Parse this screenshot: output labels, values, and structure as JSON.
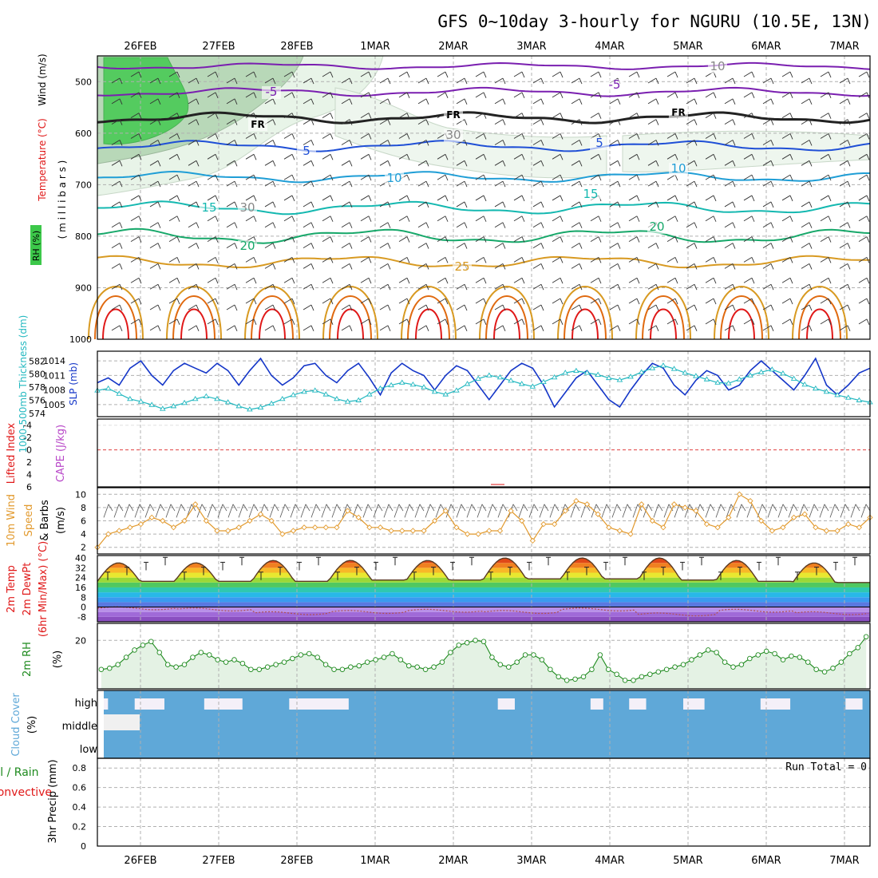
{
  "title": "GFS 0~10day 3-hourly for NGURU (10.5E, 13N)",
  "colors": {
    "frame": "#000000",
    "grid": "#b0b0b0",
    "purple": "#7a1fb0",
    "blue": "#1f4fd6",
    "lightblue": "#1f9ed6",
    "teal": "#14b8b0",
    "green": "#17a86a",
    "gold": "#d89a22",
    "orange": "#e06a10",
    "red": "#e01818",
    "slp": "#1436c8",
    "thickness": "#22b8c0",
    "windspeed": "#e29a2e",
    "rh2m": "#1e8a1e",
    "cloud": "#5fa8d8",
    "rhShade": "#3cc84a"
  },
  "chart_data": [
    {
      "id": "upper_air",
      "type": "contour",
      "x_ticks": [
        "26FEB",
        "27FEB",
        "28FEB",
        "1MAR",
        "2MAR",
        "3MAR",
        "4MAR",
        "5MAR",
        "6MAR",
        "7MAR"
      ],
      "ylabel_parts": [
        "Wind (m/s)",
        "Temperature (°C)",
        "RH (%)",
        "( m i l l i b a r s )"
      ],
      "y_ticks": [
        "500",
        "600",
        "700",
        "800",
        "900",
        "1000"
      ],
      "contour_labels": [
        "-5",
        "-5",
        "FR",
        "FR",
        "FR",
        "5",
        "5",
        "10",
        "10",
        "15",
        "15",
        "20",
        "20",
        "25",
        "30",
        "30",
        "10"
      ]
    },
    {
      "id": "slp_thickness",
      "type": "line",
      "ylabel_left": "1000-500mb Thickness (dm)",
      "ylabel_right": "SLP (mb)",
      "left_ticks": [
        "582",
        "580",
        "578",
        "576",
        "574"
      ],
      "right_ticks": [
        "1014",
        "1011",
        "1008",
        "1005"
      ],
      "series": [
        {
          "values": [
            1009.5,
            1010.5,
            1009,
            1012.5,
            1014,
            1011,
            1009,
            1012,
            1013.5,
            1012.5,
            1011.5,
            1013.5,
            1012,
            1009,
            1012,
            1014.5,
            1011,
            1009,
            1010.5,
            1013,
            1013.5,
            1011,
            1009.5,
            1012,
            1013.5,
            1010.5,
            1007,
            1011.5,
            1013.5,
            1012,
            1011,
            1008,
            1011,
            1013,
            1012,
            1009,
            1006,
            1009,
            1012,
            1013.5,
            1012.5,
            1009,
            1004.5,
            1007.5,
            1010.5,
            1012,
            1009,
            1006,
            1004.5,
            1008,
            1011,
            1013.5,
            1012.5,
            1009,
            1007,
            1010,
            1012,
            1011,
            1008,
            1009,
            1012,
            1014,
            1012,
            1010,
            1008,
            1011,
            1014.5,
            1009,
            1007,
            1009,
            1011.5,
            1012.5
          ]
        },
        {
          "values": [
            577.5,
            577.8,
            577,
            576.2,
            575.8,
            575.3,
            574.7,
            575.1,
            575.6,
            576.2,
            576.6,
            576.2,
            575.7,
            575.1,
            574.6,
            574.9,
            575.5,
            576.2,
            576.8,
            577.3,
            577.5,
            576.9,
            576.2,
            575.8,
            576,
            576.9,
            577.8,
            578.3,
            578.7,
            578.4,
            578,
            577.3,
            576.9,
            577.5,
            578.5,
            579.3,
            579.8,
            579.5,
            579,
            578.5,
            578.1,
            578.8,
            579.5,
            580.2,
            580.5,
            580.2,
            579.9,
            579.4,
            579.1,
            579.6,
            580.3,
            580.9,
            581.3,
            580.8,
            580.2,
            579.7,
            579.2,
            578.7,
            578.6,
            579.2,
            579.8,
            580.3,
            580.7,
            580.1,
            579.3,
            578.4,
            577.8,
            577.3,
            576.8,
            576.4,
            576,
            575.7
          ]
        }
      ]
    },
    {
      "id": "cape_li",
      "type": "line",
      "ylabel_left": "Lifted Index",
      "ylabel_right": "CAPE (J/kg)",
      "y_ticks": [
        "-4",
        "-2",
        "0",
        "2",
        "4",
        "6"
      ]
    },
    {
      "id": "wind10m",
      "type": "line",
      "ylabel": [
        "10m Wind",
        "Speed",
        "& Barbs"
      ],
      "ylabel_unit": "(m/s)",
      "y_ticks": [
        "10",
        "8",
        "6",
        "4",
        "2"
      ],
      "values": [
        2,
        4,
        4.5,
        5,
        5.5,
        6.5,
        6,
        5,
        6,
        8.5,
        6,
        4.5,
        4.5,
        5,
        6,
        7,
        6,
        4,
        4.5,
        5,
        5,
        5,
        5,
        7.5,
        6.5,
        5,
        5,
        4.5,
        4.5,
        4.5,
        4.5,
        6,
        7.5,
        5,
        4,
        4,
        4.5,
        4.5,
        7.5,
        6,
        3,
        5.5,
        5.5,
        7.5,
        9,
        8.5,
        7,
        5,
        4.5,
        4,
        8.5,
        6,
        5,
        8.5,
        8,
        7.5,
        5.5,
        5,
        6.5,
        10,
        9,
        6,
        4.5,
        5,
        6.5,
        7,
        5,
        4.5,
        4.5,
        5.5,
        5,
        6.5
      ]
    },
    {
      "id": "temp2m",
      "type": "area",
      "ylabel": [
        "2m Temp",
        "2m DewPt",
        "(6hr Min/Max) (°C)"
      ],
      "y_ticks": [
        "40",
        "32",
        "24",
        "16",
        "8",
        "0",
        "-8"
      ],
      "temp_max": [
        36,
        36,
        38,
        38,
        38,
        40,
        40,
        40,
        38,
        36
      ],
      "temp_min": [
        21,
        21,
        21,
        22,
        22,
        23,
        23,
        22,
        21,
        20
      ],
      "dewpt": [
        -1,
        -2,
        -5,
        -4,
        -3,
        -4,
        -2,
        -6,
        -3,
        -5
      ]
    },
    {
      "id": "rh2m",
      "type": "line",
      "ylabel": "2m RH",
      "ylabel_unit": "(%)",
      "y_ticks": [
        "20"
      ],
      "values": [
        8,
        8.5,
        10,
        13,
        16,
        18,
        19.5,
        15,
        10,
        9,
        10,
        13,
        15,
        14,
        12,
        11,
        12,
        10.5,
        8,
        8,
        9,
        10,
        11,
        12.5,
        14,
        14.5,
        13,
        10,
        8,
        8,
        9,
        9.5,
        11,
        12,
        13,
        14.5,
        12,
        9.5,
        9,
        8,
        9,
        11,
        15,
        18,
        19,
        20,
        19.5,
        13,
        10,
        9,
        11,
        14,
        14,
        12,
        8,
        5,
        3.5,
        4,
        5,
        8,
        14,
        8,
        6,
        3.5,
        3.5,
        5,
        6,
        7,
        8,
        9,
        10,
        12,
        14,
        16,
        15,
        11,
        9,
        10,
        12.5,
        14,
        15.5,
        14.5,
        12,
        13.5,
        13,
        11,
        8,
        7,
        8.5,
        11,
        14.5,
        17,
        21.5
      ]
    },
    {
      "id": "cloud_cover",
      "type": "bar",
      "ylabel": "Cloud Cover",
      "ylabel_unit": "(%)",
      "levels": [
        "high",
        "middle",
        "low"
      ]
    },
    {
      "id": "precip",
      "type": "bar",
      "ylabel_left": [
        "Total / Rain",
        "Convective"
      ],
      "ylabel": "3hr Precip (mm)",
      "y_ticks": [
        "0.8",
        "0.6",
        "0.4",
        "0.2",
        "0"
      ],
      "run_total_label": "Run Total = 0"
    }
  ]
}
